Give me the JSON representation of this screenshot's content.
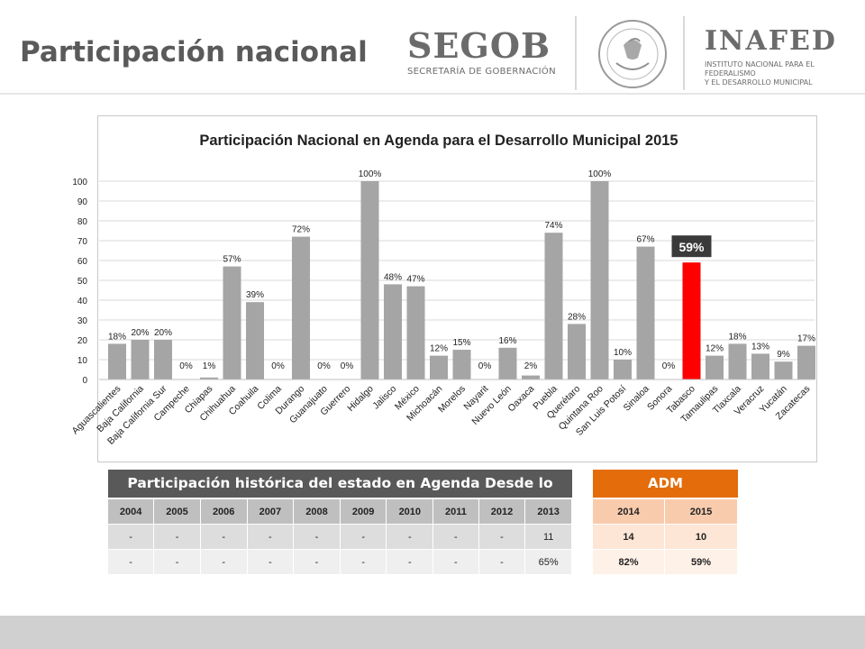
{
  "header": {
    "title": "Participación nacional",
    "segob_name": "SEGOB",
    "segob_subtitle": "SECRETARÍA DE GOBERNACIÓN",
    "inafed_name": "INAFED",
    "inafed_subtitle_line1": "INSTITUTO NACIONAL PARA EL FEDERALISMO",
    "inafed_subtitle_line2": "Y EL DESARROLLO MUNICIPAL"
  },
  "chart_data": {
    "type": "bar",
    "title": "Participación Nacional en Agenda para el Desarrollo Municipal 2015",
    "categories": [
      "Aguascalientes",
      "Baja California",
      "Baja California Sur",
      "Campeche",
      "Chiapas",
      "Chihuahua",
      "Coahuila",
      "Colima",
      "Durango",
      "Guanajuato",
      "Guerrero",
      "Hidalgo",
      "Jalisco",
      "México",
      "Michoacán",
      "Morelos",
      "Nayarit",
      "Nuevo León",
      "Oaxaca",
      "Puebla",
      "Querétaro",
      "Quintana Roo",
      "San Luis Potosí",
      "Sinaloa",
      "Sonora",
      "Tabasco",
      "Tamaulipas",
      "Tlaxcala",
      "Veracruz",
      "Yucatán",
      "Zacatecas"
    ],
    "values": [
      18,
      20,
      20,
      0,
      1,
      57,
      39,
      0,
      72,
      0,
      0,
      100,
      48,
      47,
      12,
      15,
      0,
      16,
      2,
      74,
      28,
      100,
      10,
      67,
      0,
      59,
      12,
      18,
      13,
      9,
      17
    ],
    "labels": [
      "18%",
      "20%",
      "20%",
      "0%",
      "1%",
      "57%",
      "39%",
      "0%",
      "72%",
      "0%",
      "0%",
      "100%",
      "48%",
      "47%",
      "12%",
      "15%",
      "0%",
      "16%",
      "2%",
      "74%",
      "28%",
      "100%",
      "10%",
      "67%",
      "0%",
      "59%",
      "12%",
      "18%",
      "13%",
      "9%",
      "17%"
    ],
    "highlight_index": 25,
    "highlight_label": "59%",
    "ylim": [
      0,
      100
    ],
    "yticks": [
      0,
      10,
      20,
      30,
      40,
      50,
      60,
      70,
      80,
      90,
      100
    ],
    "xlabel": "",
    "ylabel": "",
    "grid": true,
    "colors": {
      "bar": "#a5a5a5",
      "highlight": "#ff0000",
      "callout": "#3a3a3a",
      "grid": "#d9d9d9"
    }
  },
  "historic": {
    "title": "Participación histórica del estado en Agenda Desde lo Local",
    "years": [
      "2004",
      "2005",
      "2006",
      "2007",
      "2008",
      "2009",
      "2010",
      "2011",
      "2012",
      "2013"
    ],
    "rows": [
      [
        "-",
        "-",
        "-",
        "-",
        "-",
        "-",
        "-",
        "-",
        "-",
        "11"
      ],
      [
        "-",
        "-",
        "-",
        "-",
        "-",
        "-",
        "-",
        "-",
        "-",
        "65%"
      ]
    ]
  },
  "adm": {
    "title": "ADM",
    "years": [
      "2014",
      "2015"
    ],
    "rows": [
      [
        "14",
        "10"
      ],
      [
        "82%",
        "59%"
      ]
    ]
  },
  "colors": {
    "title": "#5a5a5a",
    "historic_header": "#595959",
    "adm_header": "#e46c0a"
  }
}
